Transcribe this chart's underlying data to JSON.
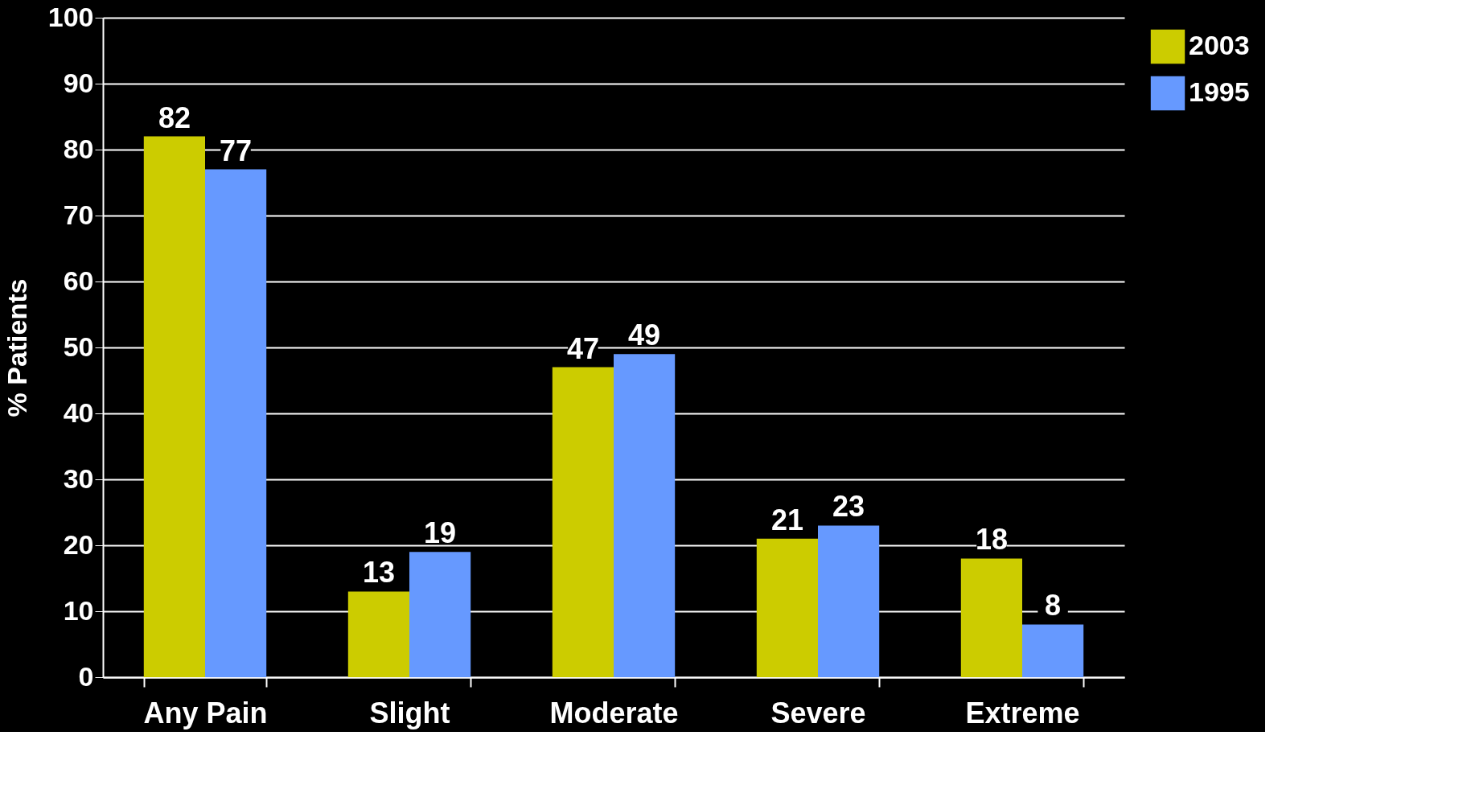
{
  "chart_data": {
    "type": "bar",
    "ylabel": "% Patients",
    "categories": [
      "Any Pain",
      "Slight",
      "Moderate",
      "Severe",
      "Extreme"
    ],
    "series": [
      {
        "name": "2003",
        "color": "#cccc00",
        "values": [
          82,
          13,
          47,
          21,
          18
        ]
      },
      {
        "name": "1995",
        "color": "#6699ff",
        "values": [
          77,
          19,
          49,
          23,
          8
        ]
      }
    ],
    "ylim": [
      0,
      100
    ],
    "yticks": [
      0,
      10,
      20,
      30,
      40,
      50,
      60,
      70,
      80,
      90,
      100
    ],
    "grid": "y",
    "legend": "right",
    "data_labels": true
  }
}
